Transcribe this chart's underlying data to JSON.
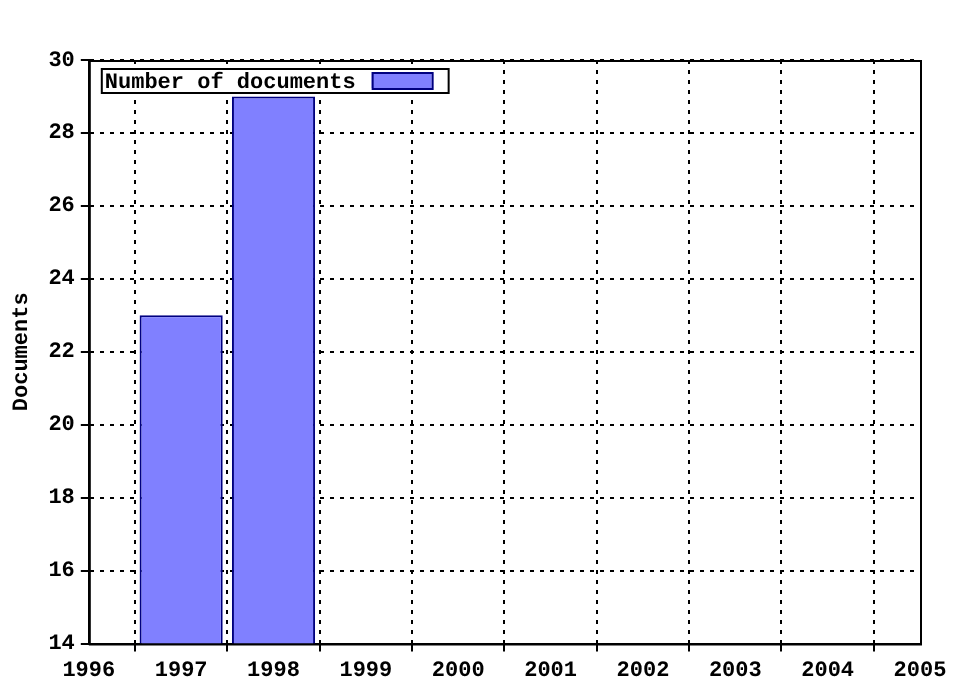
{
  "chart_data": {
    "type": "bar",
    "ylabel": "Documents",
    "x": [
      1997,
      1998
    ],
    "series": [
      {
        "name": "Number of documents",
        "color": "#8080ff",
        "values": [
          23,
          29
        ]
      }
    ],
    "xlim": [
      1996,
      2005
    ],
    "xticks": [
      1996,
      1997,
      1998,
      1999,
      2000,
      2001,
      2002,
      2003,
      2004,
      2005
    ],
    "ylim": [
      14,
      30
    ],
    "yticks": [
      14,
      16,
      18,
      20,
      22,
      24,
      26,
      28,
      30
    ],
    "grid": true,
    "legend": "top left"
  }
}
